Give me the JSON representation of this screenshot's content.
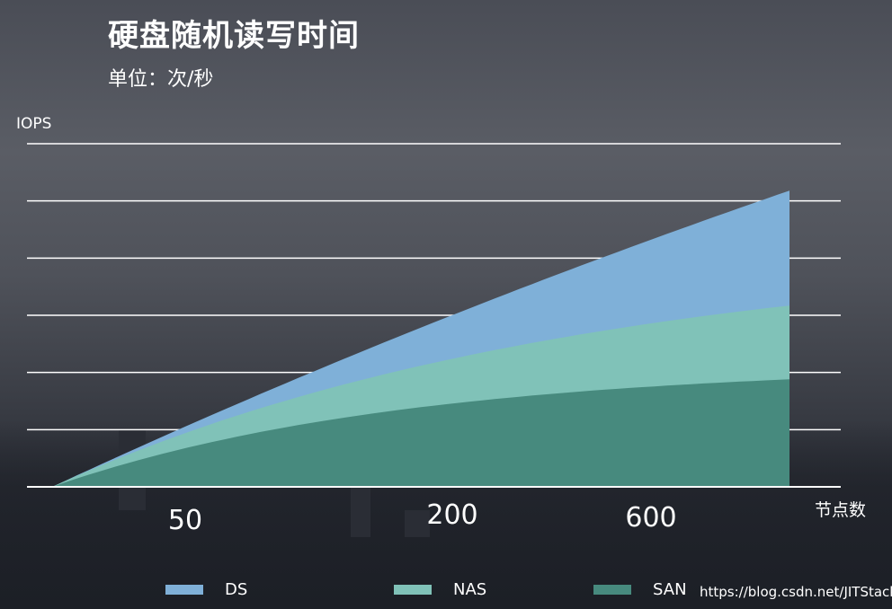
{
  "watermark": "https://blog.csdn.net/JITStack",
  "chart_data": {
    "type": "area",
    "title": "硬盘随机读写时间",
    "subtitle": "单位：次/秒",
    "ylabel": "IOPS",
    "xlabel": "节点数",
    "x_tick_labels": [
      "50",
      "200",
      "600"
    ],
    "ylim": [
      0,
      6
    ],
    "gridlines": 6,
    "grid": true,
    "legend_position": "bottom",
    "series": [
      {
        "name": "DS",
        "color": "#7fb0d8",
        "end_value": 5.18,
        "curvature": 0.3
      },
      {
        "name": "NAS",
        "color": "#80c2b8",
        "end_value": 3.17,
        "curvature": 1.4
      },
      {
        "name": "SAN",
        "color": "#478a7e",
        "end_value": 1.88,
        "curvature": 2.1
      }
    ]
  }
}
